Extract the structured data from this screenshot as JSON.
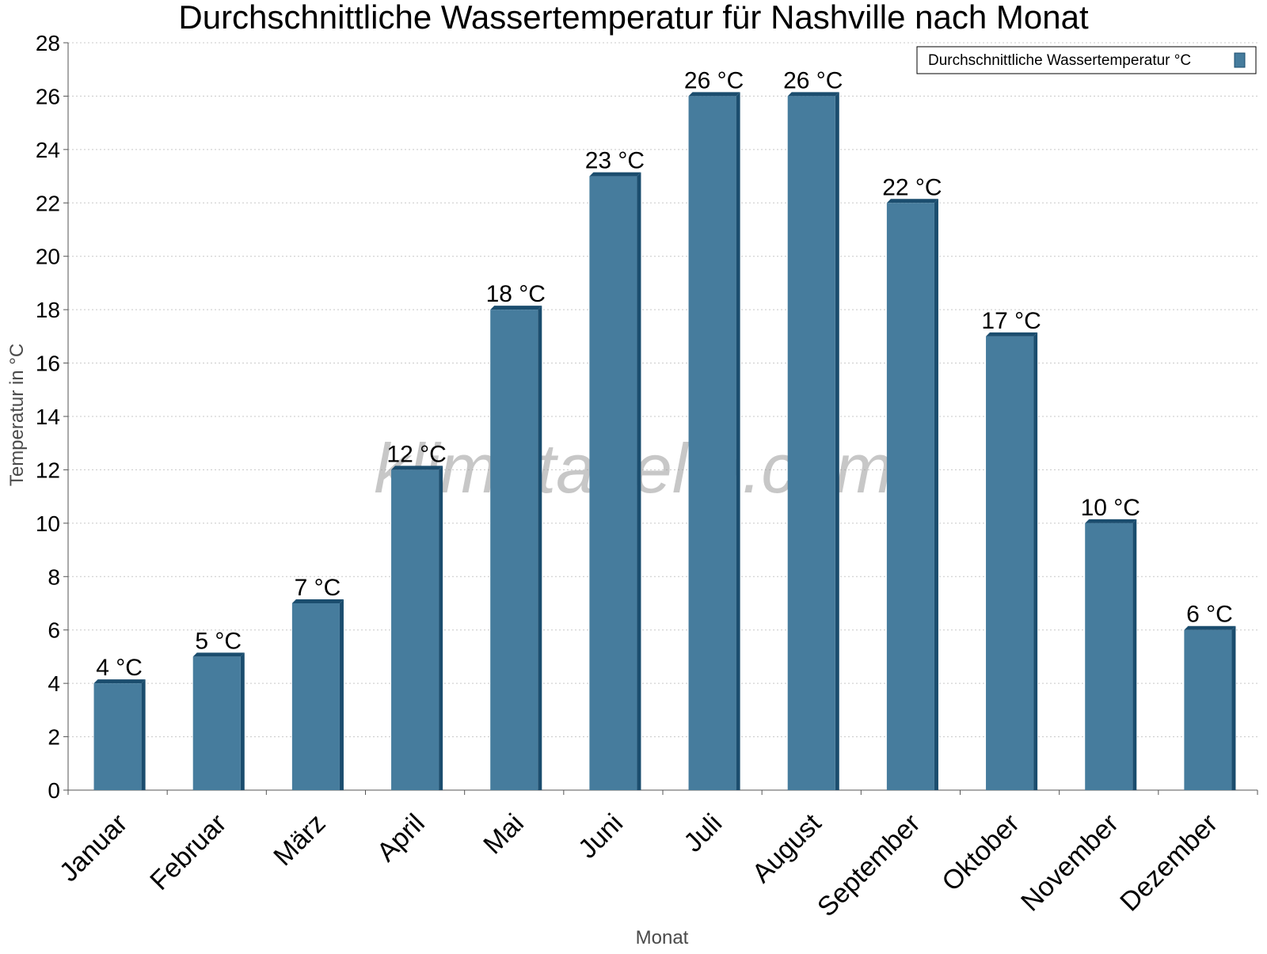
{
  "chart_data": {
    "type": "bar",
    "title": "Durchschnittliche Wassertemperatur für Nashville nach Monat",
    "xlabel": "Monat",
    "ylabel": "Temperatur in °C",
    "categories": [
      "Januar",
      "Februar",
      "März",
      "April",
      "Mai",
      "Juni",
      "Juli",
      "August",
      "September",
      "Oktober",
      "November",
      "Dezember"
    ],
    "series": [
      {
        "name": "Durchschnittliche Wassertemperatur °C",
        "values": [
          4,
          5,
          7,
          12,
          18,
          23,
          26,
          26,
          22,
          17,
          10,
          6
        ],
        "data_labels": [
          "4 °C",
          "5 °C",
          "7 °C",
          "12 °C",
          "18 °C",
          "23 °C",
          "26 °C",
          "26 °C",
          "22 °C",
          "17 °C",
          "10 °C",
          "6 °C"
        ]
      }
    ],
    "ylim": [
      0,
      28
    ],
    "yticks": [
      0,
      2,
      4,
      6,
      8,
      10,
      12,
      14,
      16,
      18,
      20,
      22,
      24,
      26,
      28
    ],
    "grid": true,
    "legend_position": "top-right",
    "colors": {
      "bar": "#467c9d",
      "bar_edge": "#1b4d6e",
      "grid": "#c8c8c8",
      "axis": "#555555"
    },
    "watermark": "klimatabelle.com"
  }
}
